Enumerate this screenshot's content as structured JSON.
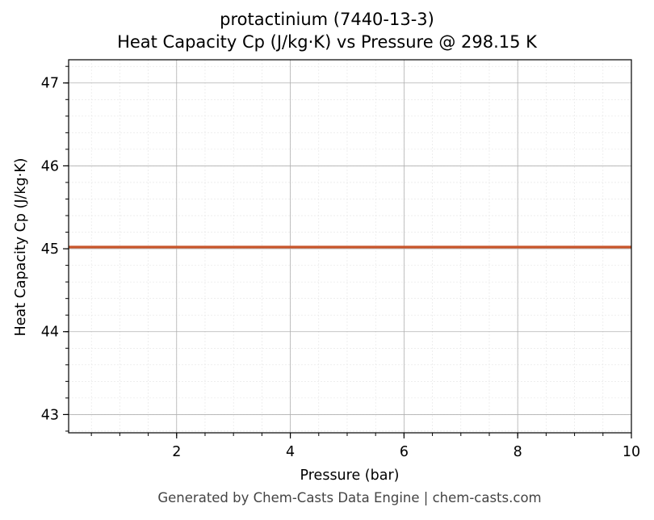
{
  "chart_data": {
    "type": "line",
    "title": "protactinium (7440-13-3)",
    "subtitle": "Heat Capacity Cp (J/kg·K) vs Pressure @ 298.15 K",
    "xlabel": "Pressure (bar)",
    "ylabel": "Heat Capacity Cp (J/kg·K)",
    "xlim": [
      0.1,
      10
    ],
    "ylim": [
      42.78,
      47.28
    ],
    "xticks": [
      2,
      4,
      6,
      8,
      10
    ],
    "yticks": [
      43,
      44,
      45,
      46,
      47
    ],
    "grid": true,
    "series": [
      {
        "color": "#c8552a",
        "x": [
          0.1,
          10
        ],
        "y": [
          45.02,
          45.02
        ]
      }
    ]
  },
  "footer": "Generated by Chem-Casts Data Engine | chem-casts.com"
}
